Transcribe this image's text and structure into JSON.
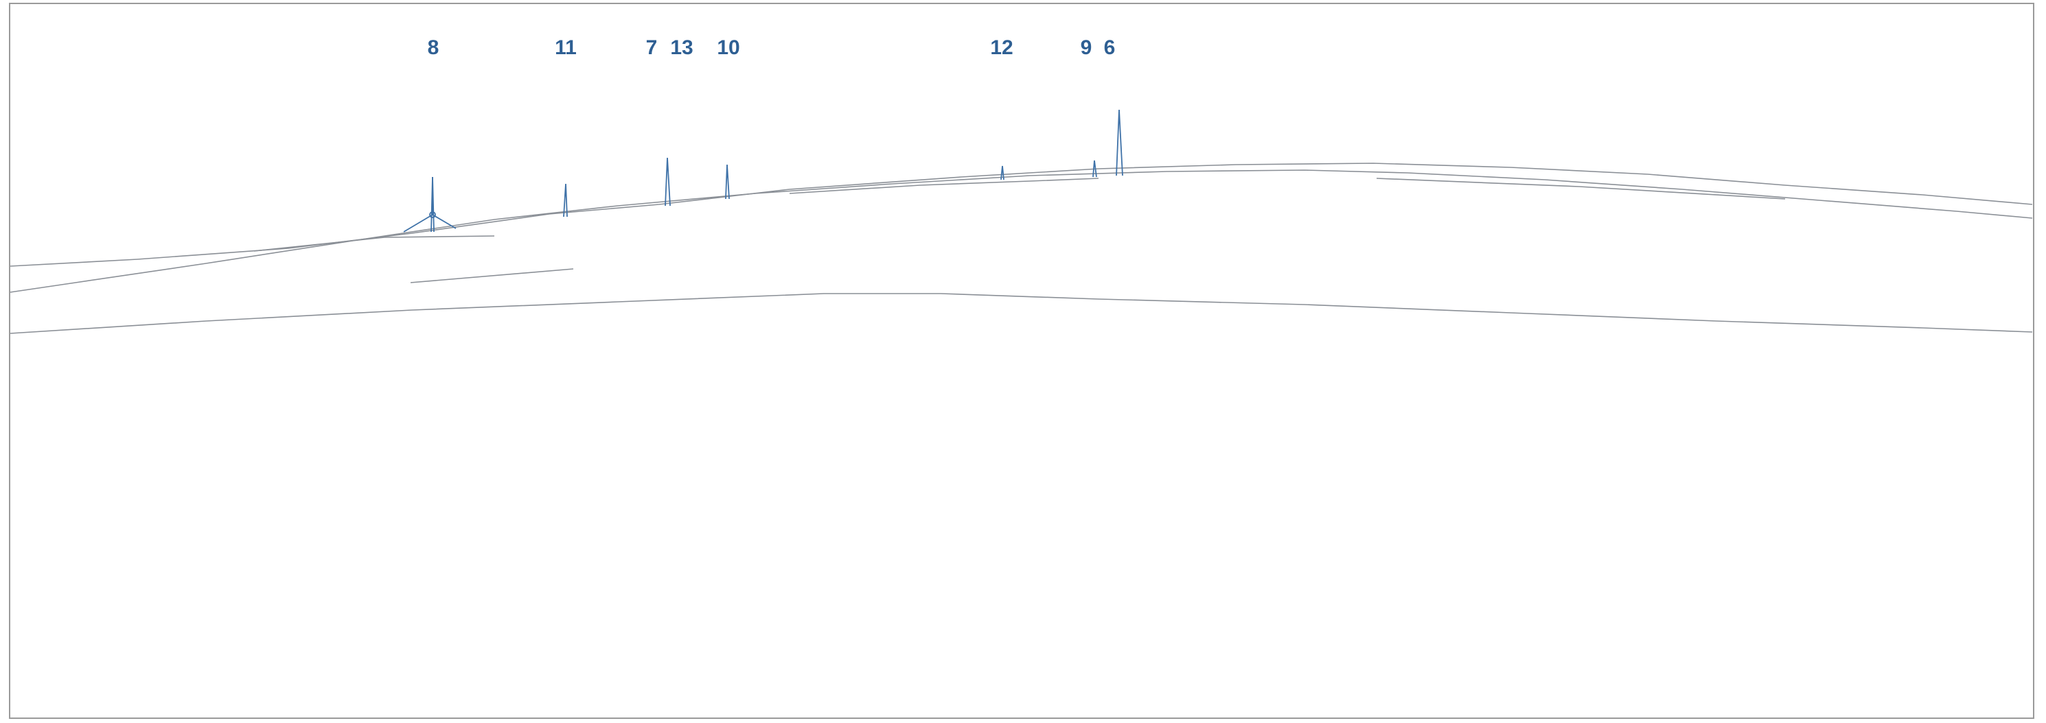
{
  "diagram": {
    "accent_color": "#2e5f93",
    "line_color": "#3f72a8",
    "terrain_color": "#8a8f96",
    "turbines": [
      {
        "label": "8"
      },
      {
        "label": "11"
      },
      {
        "label": "7"
      },
      {
        "label": "13"
      },
      {
        "label": "10"
      },
      {
        "label": "12"
      },
      {
        "label": "9"
      },
      {
        "label": "6"
      }
    ]
  }
}
